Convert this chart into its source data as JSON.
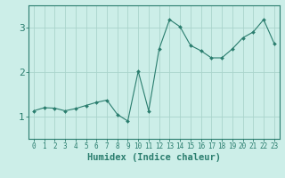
{
  "x": [
    0,
    1,
    2,
    3,
    4,
    5,
    6,
    7,
    8,
    9,
    10,
    11,
    12,
    13,
    14,
    15,
    16,
    17,
    18,
    19,
    20,
    21,
    22,
    23
  ],
  "y": [
    1.13,
    1.2,
    1.19,
    1.13,
    1.18,
    1.25,
    1.32,
    1.37,
    1.05,
    0.9,
    2.02,
    1.13,
    2.52,
    3.18,
    3.02,
    2.6,
    2.48,
    2.32,
    2.32,
    2.52,
    2.77,
    2.9,
    3.18,
    2.65
  ],
  "line_color": "#2a7d6e",
  "marker": "D",
  "marker_size": 2.0,
  "bg_color": "#cceee8",
  "grid_color": "#aad4cc",
  "xlabel": "Humidex (Indice chaleur)",
  "xlim": [
    -0.5,
    23.5
  ],
  "ylim": [
    0.5,
    3.5
  ],
  "yticks": [
    1,
    2,
    3
  ],
  "xticks": [
    0,
    1,
    2,
    3,
    4,
    5,
    6,
    7,
    8,
    9,
    10,
    11,
    12,
    13,
    14,
    15,
    16,
    17,
    18,
    19,
    20,
    21,
    22,
    23
  ],
  "tick_label_fontsize": 5.5,
  "xlabel_fontsize": 7.5,
  "ytick_fontsize": 8,
  "axis_color": "#2a7d6e"
}
